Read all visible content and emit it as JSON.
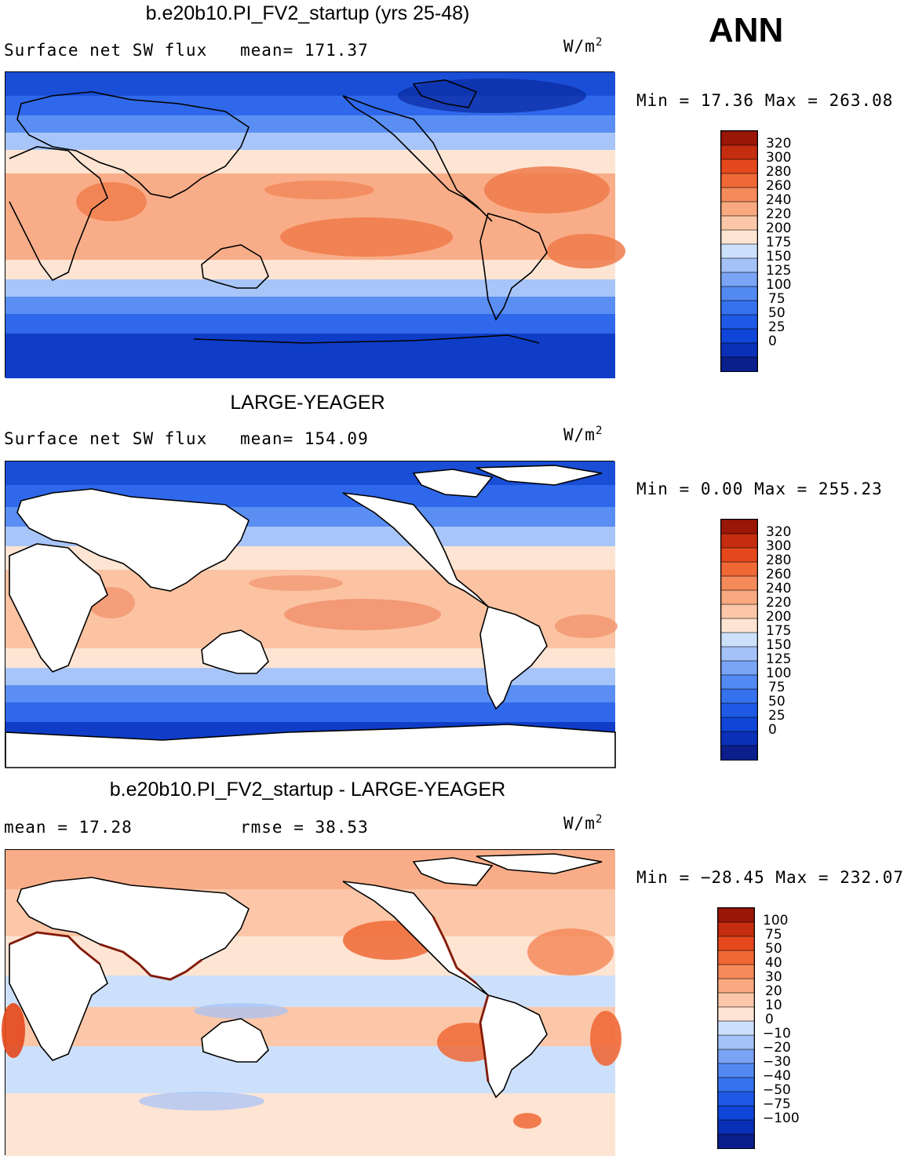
{
  "season": "ANN",
  "colors": {
    "flux": [
      "#0b1f8c",
      "#0a30b8",
      "#0f45d8",
      "#1e5ae6",
      "#3672ee",
      "#5389f2",
      "#7aa4f5",
      "#a4c2f8",
      "#cde0fb",
      "#fde4d3",
      "#fbc7a8",
      "#f8a980",
      "#f58a5a",
      "#f06836",
      "#e4481c",
      "#c42d0e",
      "#9a1607"
    ],
    "diff": [
      "#0b1f8c",
      "#0a30b8",
      "#0f45d8",
      "#1e5ae6",
      "#3672ee",
      "#5389f2",
      "#7aa4f5",
      "#a4c2f8",
      "#cde0fb",
      "#fde4d3",
      "#fbc7a8",
      "#f8a980",
      "#f58a5a",
      "#f06836",
      "#e4481c",
      "#c42d0e",
      "#9a1607"
    ]
  },
  "panels": [
    {
      "title": "b.e20b10.PI_FV2_startup (yrs 25-48)",
      "left_label": "Surface net SW flux",
      "center_label": "mean= 171.37",
      "units_base": "W/m",
      "units_exp": "2",
      "minmax": "Min =   17.36 Max = 263.08",
      "colorbar": "flux",
      "levels": [
        "320",
        "300",
        "280",
        "260",
        "240",
        "220",
        "200",
        "175",
        "150",
        "125",
        "100",
        "75",
        "50",
        "25",
        "0"
      ]
    },
    {
      "title": "LARGE-YEAGER",
      "left_label": "Surface net SW flux",
      "center_label": "mean= 154.09",
      "units_base": "W/m",
      "units_exp": "2",
      "minmax": "Min =    0.00 Max = 255.23",
      "colorbar": "flux",
      "levels": [
        "320",
        "300",
        "280",
        "260",
        "240",
        "220",
        "200",
        "175",
        "150",
        "125",
        "100",
        "75",
        "50",
        "25",
        "0"
      ]
    },
    {
      "title": "b.e20b10.PI_FV2_startup - LARGE-YEAGER",
      "left_label": "mean =   17.28",
      "center_label": "rmse =   38.53",
      "units_base": "W/m",
      "units_exp": "2",
      "minmax": "Min = −28.45 Max = 232.07",
      "colorbar": "diff",
      "levels": [
        "100",
        "75",
        "50",
        "40",
        "30",
        "20",
        "10",
        "0",
        "−10",
        "−20",
        "−30",
        "−40",
        "−50",
        "−75",
        "−100"
      ]
    }
  ]
}
